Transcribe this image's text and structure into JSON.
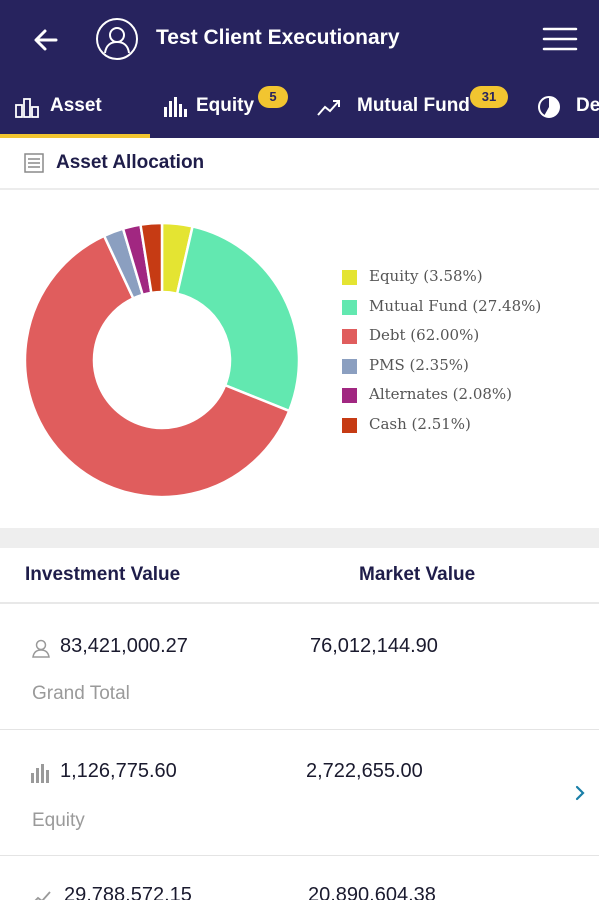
{
  "app": {
    "title": "Test Client Executionary"
  },
  "tabs": [
    {
      "label": "Asset",
      "icon": "bar-chart-icon",
      "badge": "",
      "active": true
    },
    {
      "label": "Equity",
      "icon": "equity-bars-icon",
      "badge": "5",
      "active": false
    },
    {
      "label": "Mutual Fund",
      "icon": "trend-up-icon",
      "badge": "31",
      "active": false
    },
    {
      "label": "De",
      "icon": "pie-icon",
      "badge": "",
      "active": false
    }
  ],
  "section": {
    "title": "Asset Allocation",
    "icon": "list-icon"
  },
  "chart_data": {
    "type": "pie",
    "donut": true,
    "categories": [
      "Equity",
      "Mutual Fund",
      "Debt",
      "PMS",
      "Alternates",
      "Cash"
    ],
    "values": [
      3.58,
      27.48,
      62.0,
      2.35,
      2.08,
      2.51
    ],
    "colors": [
      "#e4e432",
      "#62e8b0",
      "#e05d5d",
      "#8b9fc0",
      "#a12781",
      "#c63b14"
    ],
    "legend_labels": [
      "Equity (3.58%)",
      "Mutual Fund (27.48%)",
      "Debt (62.00%)",
      "PMS (2.35%)",
      "Alternates (2.08%)",
      "Cash (2.51%)"
    ],
    "legend_position": "right"
  },
  "table": {
    "headers": {
      "investment": "Investment Value",
      "market": "Market Value"
    },
    "rows": [
      {
        "investment": "83,421,000.27",
        "market": "76,012,144.90",
        "label": "Grand Total",
        "icon": "person-icon",
        "chevron": false
      },
      {
        "investment": "1,126,775.60",
        "market": "2,722,655.00",
        "label": "Equity",
        "icon": "equity-bars-icon",
        "chevron": true
      },
      {
        "investment": "29,788,572.15",
        "market": "20,890,604.38",
        "label": "",
        "icon": "trend-up-icon",
        "chevron": false
      }
    ]
  },
  "colors": {
    "primary": "#27235e",
    "accent": "#f2c530",
    "link": "#1a7fa8"
  }
}
